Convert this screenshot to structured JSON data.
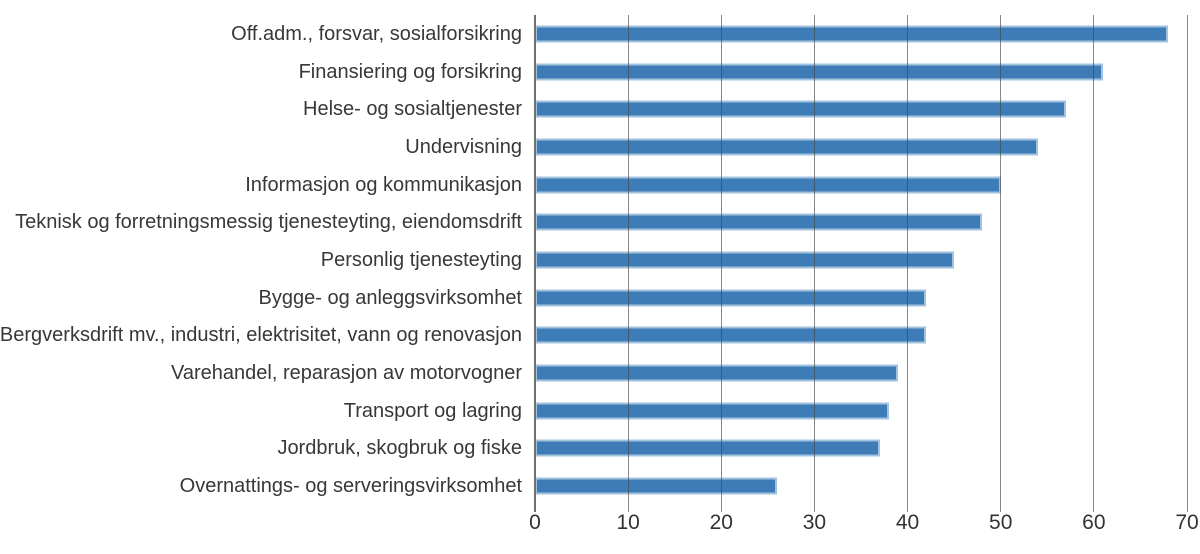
{
  "chart_data": {
    "type": "bar",
    "orientation": "horizontal",
    "title": "",
    "xlabel": "",
    "ylabel": "",
    "categories": [
      "Off.adm., forsvar, sosialforsikring",
      "Finansiering og forsikring",
      "Helse- og sosialtjenester",
      "Undervisning",
      "Informasjon og kommunikasjon",
      "Teknisk og forretningsmessig tjenesteyting, eiendomsdrift",
      "Personlig tjenesteyting",
      "Bygge- og anleggsvirksomhet",
      "Bergverksdrift mv., industri, elektrisitet, vann og renovasjon",
      "Varehandel, reparasjon av motorvogner",
      "Transport og lagring",
      "Jordbruk, skogbruk og fiske",
      "Overnattings- og serveringsvirksomhet"
    ],
    "values": [
      68,
      61,
      57,
      54,
      50,
      48,
      45,
      42,
      42,
      39,
      38,
      37,
      26
    ],
    "xlim": [
      0,
      70
    ],
    "xticks": [
      0,
      10,
      20,
      30,
      40,
      50,
      60,
      70
    ],
    "grid": true,
    "gridlines_over_bars": true,
    "legend": false,
    "colors": {
      "bar_fill": "#3E7CB8",
      "bar_border": "#A3C2DD",
      "gridline": "#8C8C8C",
      "axis_line": "#707070",
      "label_text": "#383838",
      "tick_text": "#333333",
      "background": "#FFFFFF"
    }
  }
}
